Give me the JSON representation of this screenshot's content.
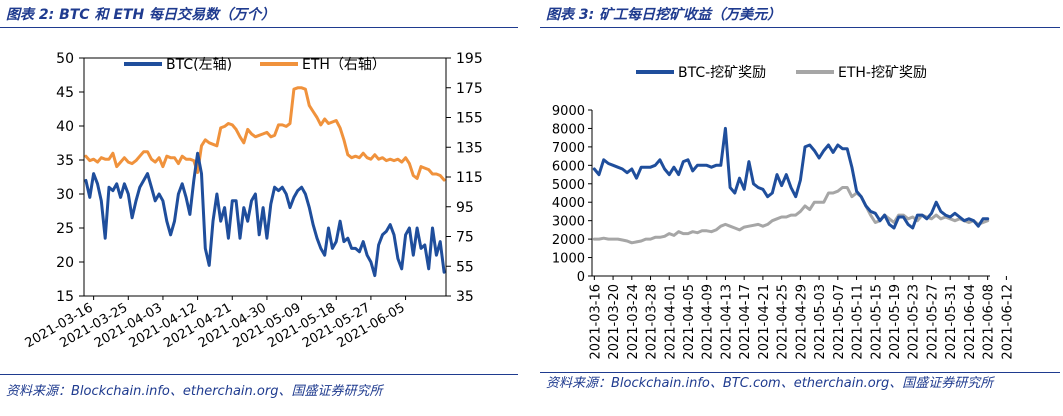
{
  "chart_data": [
    {
      "type": "line",
      "title": "图表 2:  BTC 和 ETH 每日交易数（万个）",
      "source": "资料来源：Blockchain.info、etherchain.org、国盛证券研究所",
      "legend": {
        "placement": "top",
        "entries": [
          "BTC(左轴)",
          "ETH（右轴）"
        ]
      },
      "x_ticks": [
        "2021-03-16",
        "2021-03-25",
        "2021-04-03",
        "2021-04-12",
        "2021-04-21",
        "2021-04-30",
        "2021-05-09",
        "2021-05-18",
        "2021-05-27",
        "2021-06-05"
      ],
      "y_left": {
        "min": 15,
        "max": 50,
        "ticks": [
          15,
          20,
          25,
          30,
          35,
          40,
          45,
          50
        ]
      },
      "y_right": {
        "min": 35,
        "max": 195,
        "ticks": [
          35,
          55,
          75,
          95,
          115,
          135,
          155,
          175,
          195
        ]
      },
      "grid": false,
      "series": [
        {
          "name": "BTC(左轴)",
          "axis": "left",
          "color": "#1f4e9c",
          "values": [
            32,
            29.5,
            33,
            31.5,
            29,
            23.5,
            31,
            30.5,
            31.5,
            29.5,
            31.5,
            30,
            26.5,
            29,
            31,
            32,
            33,
            31,
            29,
            30,
            29,
            26,
            24,
            26,
            30,
            31.5,
            29.5,
            27,
            32,
            36,
            33,
            22,
            19.5,
            26,
            30,
            26,
            28,
            23.5,
            29,
            29,
            23.5,
            28,
            26,
            29,
            30,
            24,
            28,
            23.5,
            28.5,
            31,
            30.5,
            31,
            30,
            28,
            29.5,
            30.5,
            31,
            30,
            28,
            25.5,
            23.5,
            22,
            21,
            25,
            22,
            23,
            26,
            23,
            23.5,
            22,
            22,
            21.5,
            23,
            21,
            20,
            18,
            22.5,
            24,
            24.5,
            25.5,
            24,
            20.5,
            19,
            24,
            25,
            21,
            25,
            22,
            22.5,
            19,
            25,
            21,
            23,
            18.5
          ]
        },
        {
          "name": "ETH（右轴）",
          "axis": "right",
          "color": "#f0923c",
          "values": [
            129,
            126,
            127,
            125,
            128,
            127,
            127,
            131,
            122,
            125,
            128,
            125,
            124,
            126,
            129,
            132,
            132,
            127,
            125,
            128,
            122,
            129,
            128,
            128,
            124,
            129,
            127,
            127,
            126,
            118,
            136,
            140,
            138,
            137,
            136,
            148,
            149,
            151,
            150,
            147,
            142,
            138,
            147,
            144,
            142,
            143,
            144,
            145,
            142,
            143,
            150,
            150,
            149,
            151,
            174,
            175,
            175,
            174,
            163,
            159,
            155,
            150,
            154,
            151,
            152,
            153,
            148,
            140,
            130,
            128,
            129,
            128,
            131,
            128,
            127,
            130,
            127,
            128,
            126,
            127,
            126,
            127,
            125,
            128,
            124,
            116,
            114,
            122,
            121,
            120,
            117,
            117,
            116,
            113
          ]
        }
      ]
    },
    {
      "type": "line",
      "title": "图表 3:  矿工每日挖矿收益（万美元）",
      "source": "资料来源：Blockchain.info、BTC.com、etherchain.org、国盛证券研究所",
      "legend": {
        "placement": "top",
        "entries": [
          "BTC-挖矿奖励",
          "ETH-挖矿奖励"
        ]
      },
      "x_ticks": [
        "2021-03-16",
        "2021-03-20",
        "2021-03-24",
        "2021-03-28",
        "2021-04-01",
        "2021-04-05",
        "2021-04-09",
        "2021-04-13",
        "2021-04-17",
        "2021-04-21",
        "2021-04-25",
        "2021-04-29",
        "2021-05-03",
        "2021-05-07",
        "2021-05-11",
        "2021-05-15",
        "2021-05-19",
        "2021-05-23",
        "2021-05-27",
        "2021-05-31",
        "2021-06-04",
        "2021-06-08",
        "2021-06-12"
      ],
      "y": {
        "min": 0,
        "max": 9000,
        "ticks": [
          0,
          1000,
          2000,
          3000,
          4000,
          5000,
          6000,
          7000,
          8000,
          9000
        ]
      },
      "grid": false,
      "series": [
        {
          "name": "BTC-挖矿奖励",
          "color": "#1f4e9c",
          "values": [
            5800,
            5500,
            6300,
            6100,
            6000,
            5900,
            5800,
            5600,
            5800,
            5300,
            5900,
            5900,
            5900,
            6000,
            6300,
            5800,
            5500,
            5900,
            5500,
            6200,
            6300,
            5700,
            6000,
            6000,
            6000,
            5900,
            6000,
            6000,
            8000,
            4800,
            4500,
            5300,
            4700,
            6200,
            5000,
            4800,
            4700,
            4300,
            4500,
            5500,
            4900,
            5500,
            4800,
            4300,
            5200,
            7000,
            7100,
            6800,
            6400,
            6800,
            7100,
            6700,
            7100,
            6900,
            6900,
            5900,
            4600,
            4300,
            3800,
            3500,
            3400,
            3000,
            3300,
            2800,
            2600,
            3200,
            3200,
            2800,
            2600,
            3300,
            3300,
            3100,
            3400,
            4000,
            3500,
            3300,
            3200,
            3400,
            3200,
            3000,
            3100,
            3000,
            2700,
            3100,
            3100
          ]
        },
        {
          "name": "ETH-挖矿奖励",
          "color": "#a6a6a6",
          "values": [
            2000,
            2000,
            2050,
            2000,
            2000,
            2000,
            1950,
            1900,
            1800,
            1850,
            1900,
            2000,
            2000,
            2100,
            2100,
            2150,
            2300,
            2200,
            2400,
            2300,
            2300,
            2400,
            2350,
            2450,
            2450,
            2400,
            2500,
            2700,
            2800,
            2700,
            2600,
            2500,
            2650,
            2700,
            2750,
            2800,
            2700,
            2800,
            3000,
            3100,
            3200,
            3200,
            3300,
            3300,
            3500,
            3800,
            3600,
            4000,
            4000,
            4000,
            4500,
            4500,
            4600,
            4800,
            4800,
            4300,
            4500,
            4300,
            3800,
            3300,
            2900,
            3000,
            3300,
            3100,
            2900,
            3300,
            3300,
            3100,
            3200,
            3000,
            3300,
            3200,
            3100,
            3300,
            3100,
            3200,
            3100,
            3000,
            3100,
            3000,
            2900,
            3000,
            2800,
            2900,
            3000
          ]
        }
      ]
    }
  ]
}
